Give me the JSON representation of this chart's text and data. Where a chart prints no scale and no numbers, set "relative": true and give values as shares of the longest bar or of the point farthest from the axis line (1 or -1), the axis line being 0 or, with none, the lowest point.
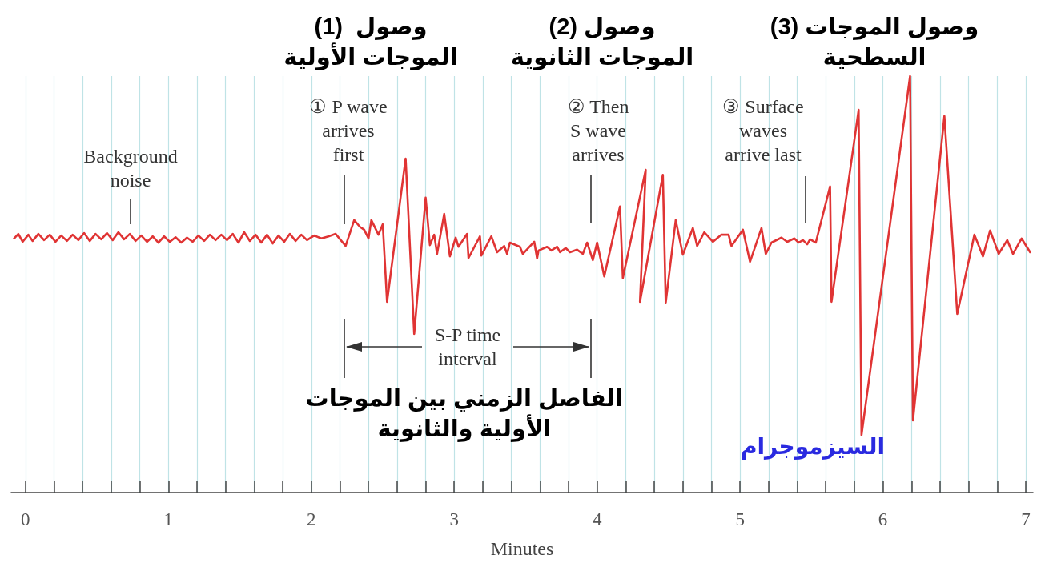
{
  "chart_data": {
    "type": "line",
    "relative": true,
    "xlabel": "Minutes",
    "color": "#e03434",
    "marker": "none",
    "line_style": "solid",
    "grid": "x",
    "xlim": [
      -0.1,
      7.05
    ],
    "xticks": [
      0,
      {
        "value": 0.2,
        "label": null
      },
      {
        "value": 0.4,
        "label": null
      },
      {
        "value": 0.6,
        "label": null
      },
      {
        "value": 0.8,
        "label": null
      },
      1,
      {
        "value": 1.2,
        "label": null
      },
      {
        "value": 1.4,
        "label": null
      },
      {
        "value": 1.6,
        "label": null
      },
      {
        "value": 1.8,
        "label": null
      },
      2,
      {
        "value": 2.2,
        "label": null
      },
      {
        "value": 2.4,
        "label": null
      },
      {
        "value": 2.6,
        "label": null
      },
      {
        "value": 2.8,
        "label": null
      },
      3,
      {
        "value": 3.2,
        "label": null
      },
      {
        "value": 3.4,
        "label": null
      },
      {
        "value": 3.6,
        "label": null
      },
      {
        "value": 3.8,
        "label": null
      },
      4,
      {
        "value": 4.2,
        "label": null
      },
      {
        "value": 4.4,
        "label": null
      },
      {
        "value": 4.6,
        "label": null
      },
      {
        "value": 4.8,
        "label": null
      },
      5,
      {
        "value": 5.2,
        "label": null
      },
      {
        "value": 5.4,
        "label": null
      },
      {
        "value": 5.6,
        "label": null
      },
      {
        "value": 5.8,
        "label": null
      },
      6,
      {
        "value": 6.2,
        "label": null
      },
      {
        "value": 6.4,
        "label": null
      },
      {
        "value": 6.6,
        "label": null
      },
      {
        "value": 6.8,
        "label": null
      },
      7
    ],
    "x": [
      -0.08,
      -0.05,
      -0.02,
      0.02,
      0.05,
      0.09,
      0.13,
      0.17,
      0.21,
      0.25,
      0.29,
      0.33,
      0.37,
      0.41,
      0.45,
      0.49,
      0.53,
      0.57,
      0.61,
      0.65,
      0.69,
      0.73,
      0.77,
      0.81,
      0.85,
      0.89,
      0.93,
      0.97,
      1.01,
      1.05,
      1.09,
      1.13,
      1.17,
      1.21,
      1.25,
      1.29,
      1.33,
      1.37,
      1.41,
      1.45,
      1.49,
      1.53,
      1.57,
      1.61,
      1.65,
      1.69,
      1.73,
      1.77,
      1.81,
      1.85,
      1.89,
      1.93,
      1.97,
      2.02,
      2.07,
      2.12,
      2.17,
      2.24,
      2.3,
      2.34,
      2.37,
      2.4,
      2.42,
      2.47,
      2.5,
      2.53,
      2.66,
      2.72,
      2.8,
      2.83,
      2.86,
      2.88,
      2.93,
      2.97,
      3.01,
      3.03,
      3.09,
      3.1,
      3.18,
      3.19,
      3.26,
      3.3,
      3.35,
      3.37,
      3.39,
      3.46,
      3.48,
      3.56,
      3.58,
      3.59,
      3.65,
      3.68,
      3.72,
      3.74,
      3.78,
      3.81,
      3.86,
      3.9,
      3.93,
      3.97,
      4.0,
      4.05,
      4.16,
      4.18,
      4.34,
      4.3,
      4.46,
      4.48,
      4.55,
      4.6,
      4.67,
      4.7,
      4.75,
      4.81,
      4.87,
      4.92,
      4.94,
      5.02,
      5.07,
      5.15,
      5.18,
      5.22,
      5.29,
      5.33,
      5.38,
      5.41,
      5.44,
      5.47,
      5.49,
      5.53,
      5.63,
      5.64,
      5.83,
      5.85,
      6.19,
      6.21,
      6.43,
      6.52,
      6.64,
      6.7,
      6.75,
      6.81,
      6.87,
      6.91,
      6.97,
      7.03
    ],
    "values": [
      0.61,
      0.621,
      0.602,
      0.619,
      0.604,
      0.621,
      0.606,
      0.619,
      0.602,
      0.617,
      0.604,
      0.619,
      0.606,
      0.623,
      0.604,
      0.621,
      0.608,
      0.623,
      0.606,
      0.625,
      0.608,
      0.621,
      0.604,
      0.617,
      0.602,
      0.615,
      0.6,
      0.615,
      0.602,
      0.613,
      0.6,
      0.612,
      0.602,
      0.617,
      0.604,
      0.619,
      0.606,
      0.619,
      0.606,
      0.621,
      0.6,
      0.625,
      0.604,
      0.619,
      0.6,
      0.619,
      0.598,
      0.617,
      0.602,
      0.621,
      0.604,
      0.619,
      0.606,
      0.617,
      0.61,
      0.615,
      0.621,
      0.592,
      0.654,
      0.638,
      0.631,
      0.61,
      0.654,
      0.619,
      0.644,
      0.458,
      0.802,
      0.381,
      0.708,
      0.594,
      0.619,
      0.573,
      0.669,
      0.567,
      0.612,
      0.59,
      0.621,
      0.563,
      0.615,
      0.569,
      0.615,
      0.577,
      0.592,
      0.573,
      0.6,
      0.59,
      0.573,
      0.602,
      0.562,
      0.581,
      0.59,
      0.581,
      0.59,
      0.577,
      0.587,
      0.577,
      0.583,
      0.573,
      0.6,
      0.558,
      0.6,
      0.519,
      0.687,
      0.515,
      0.775,
      0.458,
      0.763,
      0.456,
      0.654,
      0.571,
      0.635,
      0.592,
      0.625,
      0.602,
      0.619,
      0.619,
      0.592,
      0.631,
      0.554,
      0.635,
      0.573,
      0.6,
      0.612,
      0.602,
      0.61,
      0.6,
      0.606,
      0.596,
      0.608,
      0.6,
      0.735,
      0.458,
      0.919,
      0.138,
      1.0,
      0.173,
      0.904,
      0.429,
      0.619,
      0.567,
      0.629,
      0.573,
      0.606,
      0.573,
      0.61,
      0.577
    ],
    "annotations": [
      "Background\nnoise",
      "① P wave\narrives\nfirst",
      "② Then\nS wave\narrives",
      "③ Surface\nwaves\narrive last",
      "(1)  وصول\nالموجات الأولية",
      "(2) وصول\nالموجات الثانوية",
      "(3) وصول الموجات\nالسطحية",
      "الفاصل الزمني بين الموجات\nالأولية والثانوية",
      "السيزموجرام",
      "S-P time\ninterval"
    ]
  }
}
